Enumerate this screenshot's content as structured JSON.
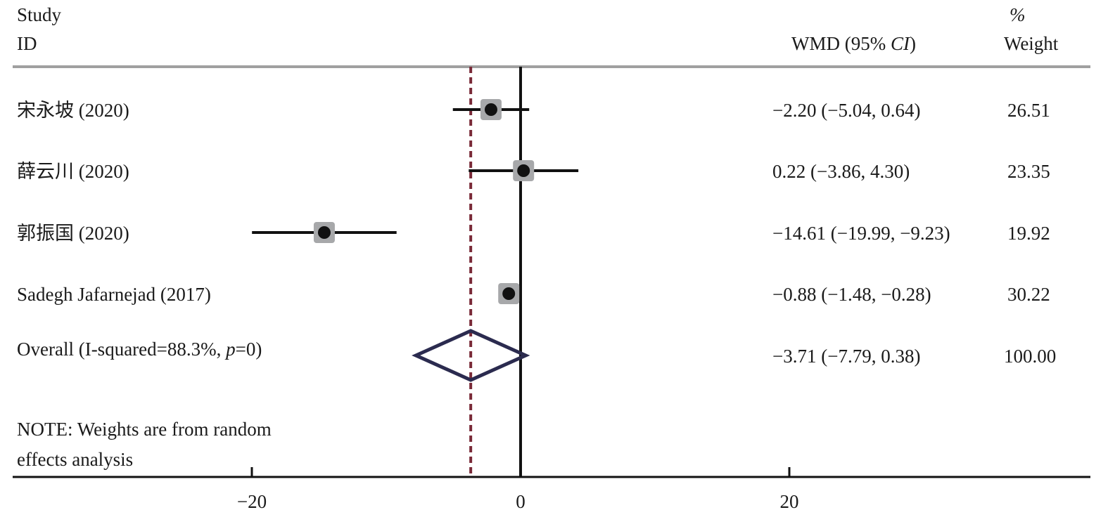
{
  "chart_data": {
    "type": "forest",
    "headers": {
      "study_line1": "Study",
      "study_line2": "ID",
      "effect_prefix": "WMD (95% ",
      "effect_ci": "CI",
      "effect_suffix": ")",
      "weight_line1": "%",
      "weight_line2": "Weight"
    },
    "studies": [
      {
        "label": "宋永坡 (2020)",
        "estimate": -2.2,
        "lower": -5.04,
        "upper": 0.64,
        "ci_text": "−2.20 (−5.04, 0.64)",
        "weight": "26.51"
      },
      {
        "label": "薛云川 (2020)",
        "estimate": 0.22,
        "lower": -3.86,
        "upper": 4.3,
        "ci_text": "0.22 (−3.86, 4.30)",
        "weight": "23.35"
      },
      {
        "label": "郭振国 (2020)",
        "estimate": -14.61,
        "lower": -19.99,
        "upper": -9.23,
        "ci_text": "−14.61 (−19.99, −9.23)",
        "weight": "19.92"
      },
      {
        "label": "Sadegh Jafarnejad (2017)",
        "estimate": -0.88,
        "lower": -1.48,
        "upper": -0.28,
        "ci_text": "−0.88 (−1.48, −0.28)",
        "weight": "30.22"
      }
    ],
    "overall": {
      "label_prefix": "Overall (I-squared=88.3%, ",
      "label_p": "p",
      "label_suffix": "=0)",
      "estimate": -3.71,
      "lower": -7.79,
      "upper": 0.38,
      "ci_text": "−3.71 (−7.79, 0.38)",
      "weight": "100.00"
    },
    "note_line1": "NOTE: Weights are from random",
    "note_line2": "effects analysis",
    "x_ticks": [
      -20,
      0,
      20
    ],
    "x_tick_labels": [
      "−20",
      "0",
      "20"
    ],
    "xlim": [
      -36.7,
      41.8
    ],
    "null_line": 0,
    "colors": {
      "marker_box": "#a7a8aa",
      "point": "#111111",
      "overall_line": "#7a2a38",
      "diamond": "#2b2b4f",
      "header_rule": "#a0a0a0"
    }
  }
}
